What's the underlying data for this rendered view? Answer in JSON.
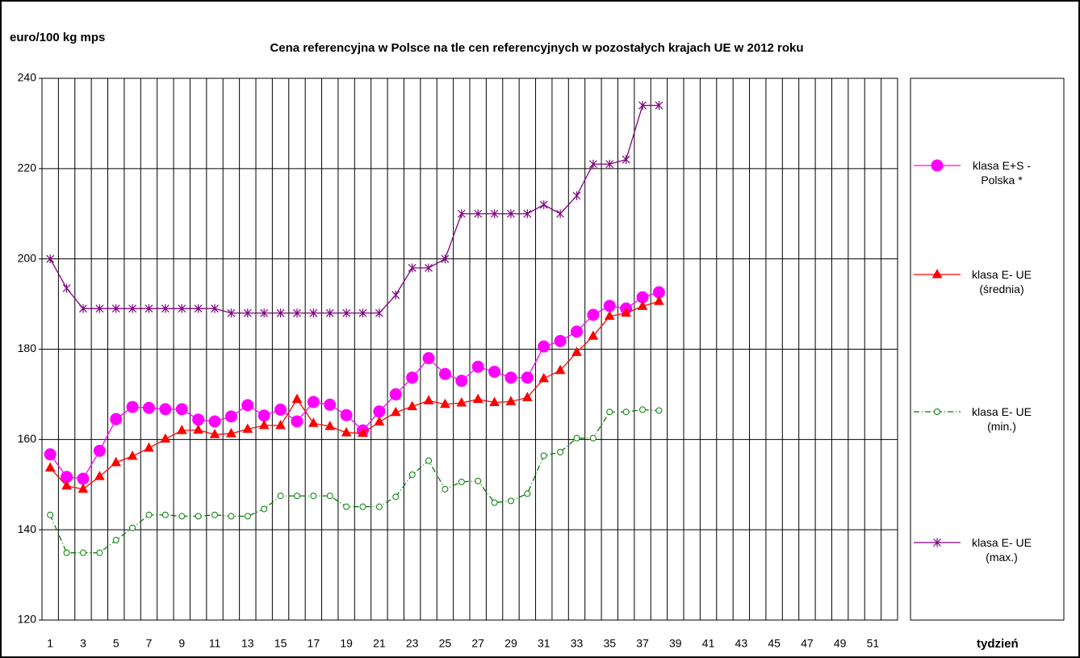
{
  "chart_data": {
    "type": "line",
    "title": "Cena referencyjna w Polsce na tle cen referencyjnych w pozostałych krajach UE w  2012 roku",
    "y_label": "euro/100 kg mps",
    "x_label": "tydzień",
    "categories": [
      1,
      null,
      3,
      null,
      5,
      null,
      7,
      null,
      9,
      null,
      11,
      null,
      13,
      null,
      15,
      null,
      17,
      null,
      19,
      null,
      21,
      null,
      23,
      null,
      25,
      null,
      27,
      null,
      29,
      null,
      31,
      null,
      33,
      null,
      35,
      null,
      37,
      null,
      39,
      null,
      41,
      null,
      43,
      null,
      45,
      null,
      47,
      null,
      49,
      null,
      51,
      null
    ],
    "ylim": [
      120,
      240
    ],
    "yticks": [
      120,
      140,
      160,
      180,
      200,
      220,
      240
    ],
    "grid": true,
    "legend": "right",
    "series": [
      {
        "name": "klasa E+S - Polska *",
        "color": "#ff00ff",
        "marker": "circle",
        "dash": "solid",
        "values": [
          156.7,
          151.7,
          151.3,
          157.5,
          164.5,
          167.2,
          167,
          166.7,
          166.7,
          164.4,
          164,
          165.1,
          167.6,
          165.3,
          166.6,
          164,
          168.3,
          167.7,
          165.4,
          162,
          166.2,
          170,
          173.7,
          178,
          174.5,
          173,
          176.1,
          175,
          173.7,
          173.7,
          180.6,
          181.8,
          183.9,
          187.6,
          189.6,
          189,
          191.5,
          192.6,
          null,
          null,
          null,
          null,
          null,
          null,
          null,
          null,
          null,
          null,
          null,
          null,
          null,
          null
        ]
      },
      {
        "name": "klasa E- UE (średnia)",
        "color": "#ff0000",
        "marker": "triangle",
        "dash": "solid",
        "values": [
          153.7,
          149.7,
          149,
          151.8,
          154.9,
          156.3,
          158.1,
          160.1,
          162,
          162.1,
          161.1,
          161.3,
          162.3,
          163.1,
          163.1,
          168.9,
          163.6,
          162.9,
          161.5,
          161.4,
          163.9,
          166,
          167.3,
          168.6,
          167.8,
          168.1,
          168.9,
          168.2,
          168.4,
          169.3,
          173.5,
          175.3,
          179.3,
          182.9,
          187.3,
          188,
          189.5,
          190.6,
          null,
          null,
          null,
          null,
          null,
          null,
          null,
          null,
          null,
          null,
          null,
          null,
          null,
          null
        ]
      },
      {
        "name": "klasa E- UE (min.)",
        "color": "#008000",
        "marker": "open-circle",
        "dash": "dashdot",
        "values": [
          143.3,
          134.9,
          134.9,
          134.9,
          137.7,
          140.4,
          143.3,
          143.3,
          143,
          143,
          143.3,
          143,
          143,
          144.6,
          147.5,
          147.5,
          147.5,
          147.5,
          145.1,
          145.1,
          145.1,
          147.3,
          152.2,
          155.3,
          149,
          150.6,
          150.8,
          146,
          146.4,
          148,
          156.4,
          157.2,
          160.3,
          160.3,
          166.1,
          166.1,
          166.6,
          166.4,
          null,
          null,
          null,
          null,
          null,
          null,
          null,
          null,
          null,
          null,
          null,
          null,
          null,
          null
        ]
      },
      {
        "name": "klasa E- UE (max.)",
        "color": "#800080",
        "marker": "star",
        "dash": "solid",
        "values": [
          200,
          193.5,
          189,
          189,
          189,
          189,
          189,
          189,
          189,
          189,
          189,
          188,
          188,
          188,
          188,
          188,
          188,
          188,
          188,
          188,
          188,
          192,
          198,
          198,
          200,
          210,
          210,
          210,
          210,
          210,
          212,
          210,
          214,
          221,
          221,
          222,
          234,
          234,
          null,
          null,
          null,
          null,
          null,
          null,
          null,
          null,
          null,
          null,
          null,
          null,
          null,
          null
        ]
      }
    ]
  }
}
